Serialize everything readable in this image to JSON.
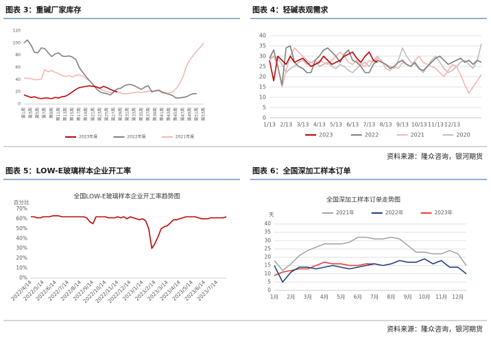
{
  "captions": [
    "图表 3：重碱厂家库存",
    "图表 4：轻碱表观需求",
    "图表 5：LOW-E玻璃样本企业开工率",
    "图表 6：全国深加工样本订单"
  ],
  "sources": [
    "资料来源：隆众咨询，银河期货",
    "资料来源：隆众咨询，银河期货"
  ],
  "chart_data": [
    {
      "type": "line",
      "categories": [
        "第1周",
        null,
        "第3周",
        null,
        "第5周",
        null,
        "第7周",
        null,
        "第9周",
        null,
        "第11周",
        null,
        "第13周",
        null,
        "第15周",
        null,
        "第17周",
        null,
        "第19周",
        null,
        "第21周",
        null,
        "第23周",
        null,
        "第25周",
        null,
        "第27周",
        null,
        "第29周",
        null,
        "第31周",
        null,
        "第33周",
        null,
        "第35周",
        null,
        "第37周",
        null,
        "第39周",
        null,
        "第41周",
        null,
        "第43周",
        null,
        "第45周",
        null,
        "第47周",
        null,
        "第49周",
        null,
        "第51周",
        null,
        "第53周"
      ],
      "series": [
        {
          "name": "2023年度",
          "color": "#c00000",
          "values": [
            15,
            13,
            11,
            12,
            10,
            9,
            10,
            10,
            9,
            11,
            10,
            12,
            13,
            16,
            20,
            24,
            27,
            28,
            29,
            30,
            29,
            28,
            26,
            29,
            27,
            24,
            22,
            20,
            null,
            null,
            null,
            null,
            null,
            null,
            null,
            null,
            null,
            null,
            null,
            null,
            null,
            null,
            null,
            null,
            null,
            null,
            null,
            null,
            null,
            null,
            null,
            null,
            null
          ]
        },
        {
          "name": "2022年度",
          "color": "#7f7f7f",
          "values": [
            100,
            105,
            97,
            85,
            84,
            92,
            91,
            84,
            78,
            82,
            84,
            79,
            78,
            79,
            77,
            73,
            60,
            52,
            45,
            38,
            32,
            25,
            20,
            18,
            17,
            15,
            20,
            25,
            26,
            30,
            32,
            32,
            30,
            27,
            24,
            28,
            30,
            20,
            22,
            23,
            20,
            18,
            16,
            14,
            10,
            10,
            11,
            12,
            15,
            17,
            17,
            null,
            null
          ]
        },
        {
          "name": "2021年度",
          "color": "#f4b6b0",
          "values": [
            43,
            42,
            42,
            40,
            40,
            41,
            56,
            53,
            55,
            52,
            50,
            47,
            45,
            47,
            44,
            47,
            48,
            46,
            42,
            38,
            32,
            28,
            25,
            22,
            20,
            19,
            20,
            20,
            18,
            17,
            17,
            18,
            19,
            20,
            19,
            20,
            21,
            22,
            21,
            22,
            18,
            17,
            18,
            20,
            25,
            33,
            45,
            62,
            72,
            80,
            87,
            93,
            100
          ]
        }
      ],
      "ylim": [
        0,
        120
      ],
      "yticks": [
        0,
        20,
        40,
        60,
        80,
        100,
        120
      ],
      "grid": false,
      "legend": "bottom"
    },
    {
      "type": "line",
      "categories": [
        "1/13",
        null,
        null,
        null,
        "2/13",
        null,
        null,
        null,
        "3/13",
        null,
        null,
        null,
        "4/13",
        null,
        null,
        null,
        "5/13",
        null,
        null,
        null,
        "6/13",
        null,
        null,
        null,
        "7/13",
        null,
        null,
        null,
        "8/13",
        null,
        null,
        null,
        "9/13",
        null,
        null,
        null,
        "10/13",
        null,
        null,
        null,
        "11/13",
        null,
        null,
        null,
        "12/13",
        null,
        null,
        null,
        null,
        null,
        null,
        null
      ],
      "series": [
        {
          "name": "2023",
          "color": "#c00000",
          "values": [
            28,
            18,
            30,
            28,
            26,
            30,
            27,
            28,
            29,
            27,
            25,
            26,
            27,
            30,
            28,
            26,
            27,
            28,
            30,
            31,
            32,
            29,
            27,
            30,
            32,
            28,
            27,
            null,
            null,
            null,
            null,
            null,
            null,
            null,
            null,
            null,
            null,
            null,
            null,
            null,
            null,
            null,
            null,
            null,
            null,
            null,
            null,
            null,
            null,
            null,
            null,
            null
          ]
        },
        {
          "name": "2022",
          "color": "#7f7f7f",
          "values": [
            29,
            33,
            25,
            16,
            34,
            35,
            27,
            25,
            24,
            22,
            22,
            28,
            30,
            33,
            34,
            32,
            30,
            27,
            31,
            33,
            28,
            27,
            25,
            22,
            22,
            26,
            28,
            27,
            26,
            24,
            25,
            27,
            28,
            26,
            25,
            27,
            24,
            23,
            25,
            27,
            29,
            30,
            28,
            26,
            27,
            28,
            29,
            27,
            28,
            26,
            28,
            27
          ]
        },
        {
          "name": "2021",
          "color": "#f4b6b0",
          "values": [
            29,
            30,
            25,
            15,
            23,
            30,
            34,
            32,
            30,
            28,
            27,
            26,
            28,
            27,
            26,
            28,
            30,
            32,
            30,
            27,
            26,
            28,
            26,
            25,
            28,
            27,
            29,
            28,
            24,
            23,
            25,
            24,
            27,
            26,
            25,
            28,
            30,
            27,
            26,
            25,
            24,
            22,
            20,
            23,
            26,
            25,
            21,
            16,
            12,
            15,
            18,
            21
          ]
        },
        {
          "name": "2020",
          "color": "#bfbfbf",
          "values": [
            28,
            30,
            29,
            26,
            22,
            24,
            25,
            27,
            28,
            26,
            27,
            28,
            25,
            26,
            27,
            25,
            24,
            26,
            25,
            23,
            22,
            24,
            26,
            27,
            25,
            28,
            30,
            27,
            26,
            25,
            24,
            28,
            34,
            30,
            27,
            26,
            24,
            22,
            25,
            28,
            30,
            27,
            24,
            22,
            23,
            25,
            27,
            28,
            26,
            24,
            28,
            36
          ]
        }
      ],
      "ylim": [
        0,
        40
      ],
      "yticks": [
        0,
        5,
        10,
        15,
        20,
        25,
        30,
        35,
        40
      ],
      "grid": true,
      "legend": "bottom"
    },
    {
      "type": "line",
      "title": "全国LOW-E玻璃样本企业开工率趋势图",
      "y_label": "百分比",
      "categories": [
        "2022/4/14",
        null,
        null,
        null,
        "2022/5/14",
        null,
        null,
        null,
        "2022/6/14",
        null,
        null,
        null,
        "2022/7/14",
        null,
        null,
        null,
        "2022/8/14",
        null,
        null,
        null,
        "2022/9/14",
        null,
        null,
        null,
        "2022/10/14",
        null,
        null,
        null,
        "2022/11/14",
        null,
        null,
        null,
        "2022/12/14",
        null,
        null,
        null,
        "2023/1/14",
        null,
        null,
        null,
        "2023/2/14",
        null,
        null,
        null,
        "2023/3/14",
        null,
        null,
        null,
        "2023/4/14",
        null,
        null,
        null,
        "2023/5/14",
        null,
        null,
        null,
        "2023/6/14",
        null,
        null,
        null,
        "2023/7/14",
        null,
        null,
        null
      ],
      "values": [
        62,
        62,
        61,
        61,
        62,
        62,
        62,
        63,
        63,
        63,
        62,
        62,
        62,
        62,
        62,
        62,
        62,
        62,
        61,
        57,
        55,
        62,
        62,
        62,
        62,
        61,
        61,
        61,
        62,
        61,
        62,
        60,
        62,
        61,
        60,
        59,
        60,
        58,
        50,
        30,
        35,
        42,
        50,
        52,
        53,
        56,
        59,
        59,
        60,
        61,
        62,
        62,
        62,
        62,
        61,
        60,
        60,
        60,
        61,
        61,
        61,
        61,
        61,
        62
      ],
      "color": "#c00000",
      "ylim": [
        0,
        70
      ],
      "yticks": [
        {
          "value": 0,
          "label": "0%"
        },
        {
          "value": 10,
          "label": "10%"
        },
        {
          "value": 20,
          "label": "20%"
        },
        {
          "value": 30,
          "label": "30%"
        },
        {
          "value": 40,
          "label": "40%"
        },
        {
          "value": 50,
          "label": "50%"
        },
        {
          "value": 60,
          "label": "60%"
        },
        {
          "value": 70,
          "label": "70%"
        }
      ],
      "grid": false
    },
    {
      "type": "line",
      "title": "全国深加工样本订单走势图",
      "y_label": "天",
      "categories": [
        "1月",
        null,
        "2月",
        null,
        "3月",
        null,
        "4月",
        null,
        "5月",
        null,
        "6月",
        null,
        "7月",
        null,
        "8月",
        null,
        "9月",
        null,
        "10月",
        null,
        "11月",
        null,
        "12月",
        null
      ],
      "series": [
        {
          "name": "2021年",
          "color": "#a5a5a5",
          "values": [
            18,
            12,
            16,
            21,
            24,
            26,
            28,
            28,
            28,
            29,
            32,
            32,
            31,
            31,
            32,
            31,
            27,
            23,
            23,
            22,
            22,
            24,
            22,
            15
          ]
        },
        {
          "name": "2022年",
          "color": "#1f3f7f",
          "values": [
            15,
            5,
            11,
            14,
            14,
            13,
            14,
            15,
            14,
            13,
            14,
            15,
            16,
            15,
            16,
            18,
            17,
            17,
            19,
            16,
            18,
            14,
            14,
            10
          ]
        },
        {
          "name": "2023年",
          "color": "#e0403a",
          "values": [
            9,
            11,
            12,
            13,
            13,
            15,
            17,
            16,
            16,
            15,
            15,
            16,
            16,
            null,
            null,
            null,
            null,
            null,
            null,
            null,
            null,
            null,
            null,
            null
          ]
        }
      ],
      "ylim": [
        0,
        40
      ],
      "yticks": [
        0,
        5,
        10,
        15,
        20,
        25,
        30,
        35,
        40
      ],
      "grid": true,
      "legend": "top"
    }
  ]
}
